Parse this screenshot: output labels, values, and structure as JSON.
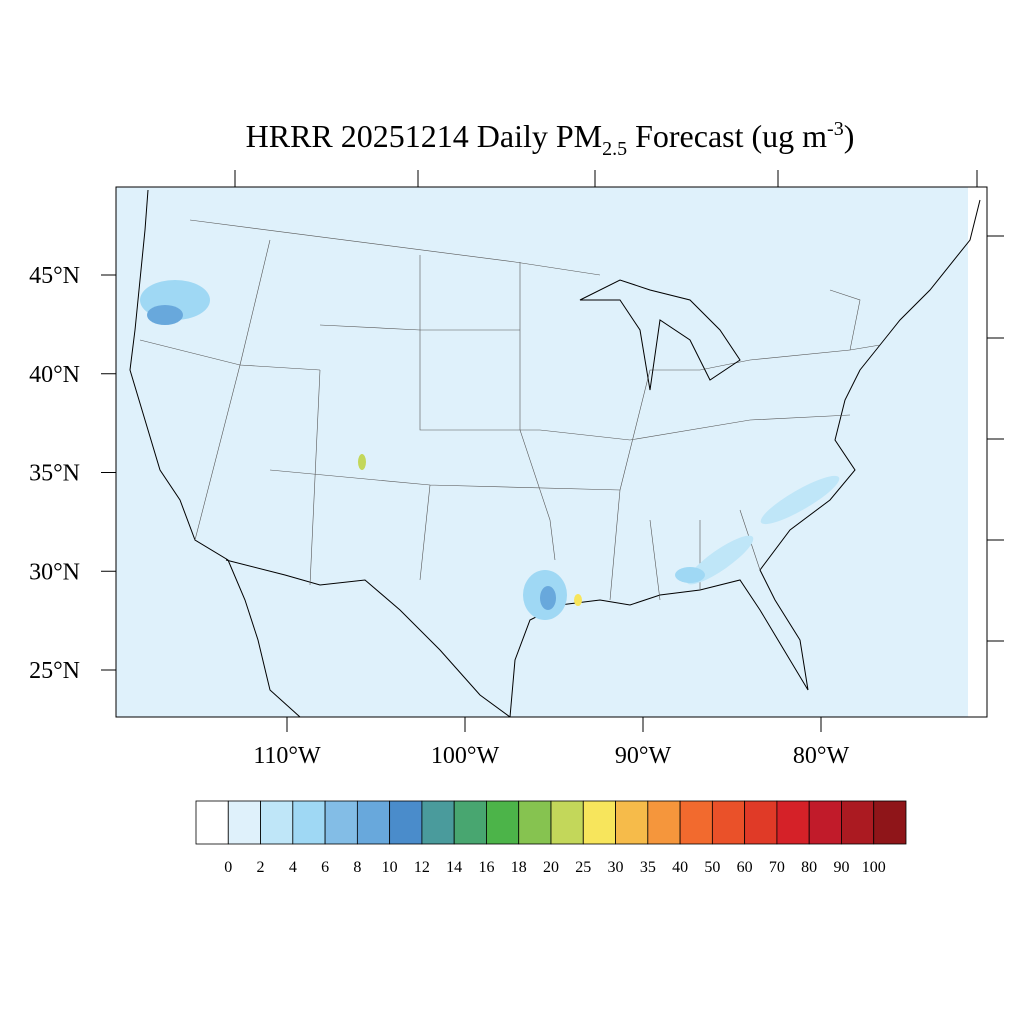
{
  "map": {
    "title": {
      "main": "HRRR 20251214 Daily PM",
      "subscript": "2.5",
      "middle": " Forecast (ug m",
      "superscript": "-3",
      "end": ")"
    },
    "lat_ticks": [
      {
        "value": 45,
        "label": "45°N"
      },
      {
        "value": 40,
        "label": "40°N"
      },
      {
        "value": 35,
        "label": "35°N"
      },
      {
        "value": 30,
        "label": "30°N"
      },
      {
        "value": 25,
        "label": "25°N"
      }
    ],
    "lon_ticks": [
      {
        "value": -110,
        "label": "110°W"
      },
      {
        "value": -100,
        "label": "100°W"
      },
      {
        "value": -90,
        "label": "90°W"
      },
      {
        "value": -80,
        "label": "80°W"
      }
    ],
    "colorbar": {
      "levels": [
        0,
        2,
        4,
        6,
        8,
        10,
        12,
        14,
        16,
        18,
        20,
        25,
        30,
        35,
        40,
        50,
        60,
        70,
        80,
        90,
        100
      ],
      "colors": [
        "#ffffff",
        "#dff1fb",
        "#bfe6f8",
        "#9fd8f4",
        "#83bde6",
        "#68a8dc",
        "#4a8ccb",
        "#4a9b9c",
        "#48a670",
        "#4cb449",
        "#86c350",
        "#c3d75a",
        "#f7e55c",
        "#f6bb4a",
        "#f5963c",
        "#f26a2e",
        "#ea5129",
        "#e03a27",
        "#d52128",
        "#c11b2a",
        "#ab1a21",
        "#8f1519"
      ]
    }
  }
}
